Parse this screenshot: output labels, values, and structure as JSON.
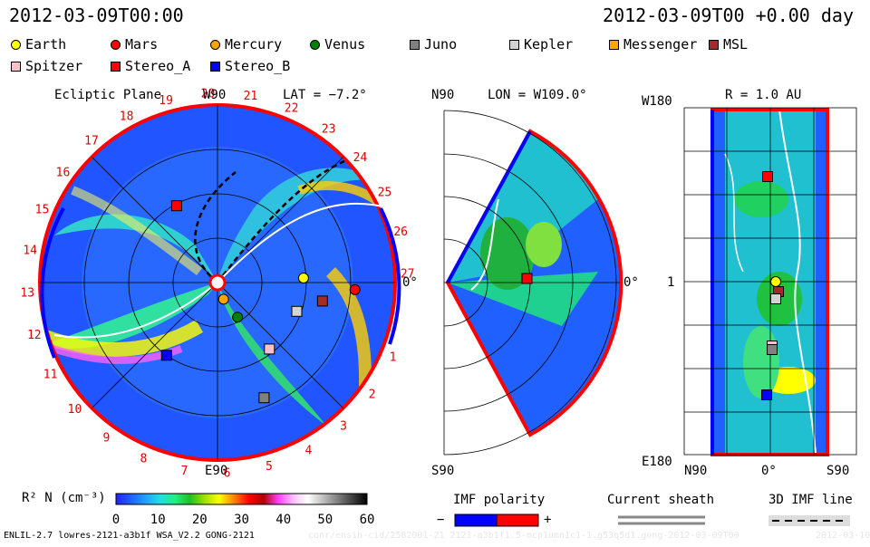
{
  "header": {
    "timestamp_left": "2012-03-09T00:00",
    "timestamp_right": "2012-03-09T00 +0.00 day"
  },
  "legend": [
    {
      "label": "Earth",
      "shape": "circle",
      "color": "#ffff00"
    },
    {
      "label": "Mars",
      "shape": "circle",
      "color": "#ff0000"
    },
    {
      "label": "Mercury",
      "shape": "circle",
      "color": "#ffa500"
    },
    {
      "label": "Venus",
      "shape": "circle",
      "color": "#008000"
    },
    {
      "label": "Juno",
      "shape": "square",
      "color": "#808080"
    },
    {
      "label": "Kepler",
      "shape": "square",
      "color": "#d3d3d3"
    },
    {
      "label": "Messenger",
      "shape": "square",
      "color": "#ffa500"
    },
    {
      "label": "MSL",
      "shape": "square",
      "color": "#a52a2a"
    },
    {
      "label": "Spitzer",
      "shape": "square",
      "color": "#ffc0cb"
    },
    {
      "label": "Stereo_A",
      "shape": "square",
      "color": "#ff0000"
    },
    {
      "label": "Stereo_B",
      "shape": "square",
      "color": "#0000ff"
    }
  ],
  "panel_ecliptic": {
    "title": "Ecliptic Plane",
    "top_label": "W90",
    "lat_label": "LAT = −7.2°",
    "bottom_label": "E90",
    "right_label": "0°",
    "carrington_numbers": [
      "1",
      "2",
      "3",
      "4",
      "5",
      "6",
      "7",
      "8",
      "9",
      "10",
      "11",
      "12",
      "13",
      "14",
      "15",
      "16",
      "17",
      "18",
      "19",
      "20",
      "21",
      "22",
      "23",
      "24",
      "25",
      "26",
      "27"
    ]
  },
  "panel_meridional": {
    "top_label": "N90",
    "lon_label": "LON = W109.0°",
    "bottom_label": "S90",
    "right_label": "0°"
  },
  "panel_radial": {
    "title": "R = 1.0 AU",
    "top_left": "W180",
    "mid_left": "1",
    "bottom_left": "E180",
    "bottom_x": [
      "N90",
      "0°",
      "S90"
    ]
  },
  "colorbar": {
    "label": "R² N (cm⁻³)",
    "ticks": [
      "0",
      "10",
      "20",
      "30",
      "40",
      "50",
      "60"
    ],
    "range": [
      0,
      60
    ],
    "colors": [
      "#2020ff",
      "#2060ff",
      "#20a0ff",
      "#20e0e0",
      "#20f080",
      "#20c020",
      "#a0e000",
      "#ffff00",
      "#ff8000",
      "#ff0000",
      "#b00000",
      "#ff40ff",
      "#ffc0ff",
      "#ffffff",
      "#c0c0c0",
      "#808080",
      "#404040",
      "#000000"
    ]
  },
  "imf": {
    "title": "IMF polarity",
    "minus": "−",
    "plus": "+",
    "neg_color": "#0000ff",
    "pos_color": "#ff0000"
  },
  "sheath": {
    "title": "Current sheath"
  },
  "imf_line": {
    "title": "3D IMF line"
  },
  "footer": {
    "model": "ENLIL-2.7 lowres-2121-a3b1f WSA_V2.2 GONG-2121",
    "faint_id": "conr/ensih-cid/2582001-21 2121-a3b1f1.5-mcp1umn1c1-1.g53q5d1.gong-2012-03-09T00",
    "faint_date": "2012-03-10"
  },
  "chart_data": {
    "type": "heatmap",
    "variable": "R² N",
    "unit": "cm⁻³",
    "color_range": [
      0,
      60
    ],
    "time": "2012-03-09T00:00",
    "ecliptic_markers": [
      {
        "name": "Earth",
        "r_au": 0.97,
        "angle_deg": 3
      },
      {
        "name": "Mars",
        "r_au": 1.55,
        "angle_deg": -3
      },
      {
        "name": "Mercury",
        "r_au": 0.2,
        "angle_deg": -70
      },
      {
        "name": "Venus",
        "r_au": 0.45,
        "angle_deg": -60
      },
      {
        "name": "Juno",
        "r_au": 1.4,
        "angle_deg": -68
      },
      {
        "name": "Kepler",
        "r_au": 0.95,
        "angle_deg": -20
      },
      {
        "name": "MSL",
        "r_au": 1.2,
        "angle_deg": -10
      },
      {
        "name": "Spitzer",
        "r_au": 0.95,
        "angle_deg": -52
      },
      {
        "name": "Stereo_A",
        "r_au": 0.98,
        "angle_deg": 118
      },
      {
        "name": "Stereo_B",
        "r_au": 1.0,
        "angle_deg": -125
      }
    ]
  }
}
